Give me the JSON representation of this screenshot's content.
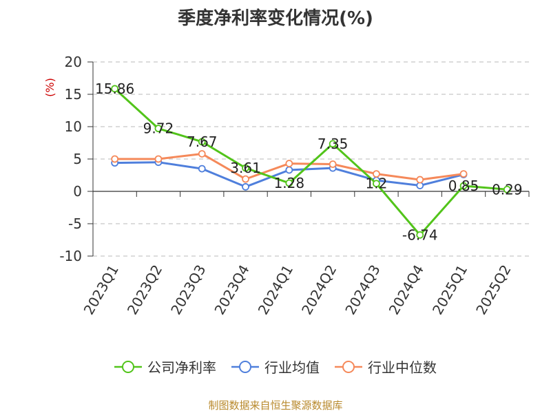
{
  "page": {
    "title": "季度净利率变化情况(%)",
    "source": "制图数据来自恒生聚源数据库"
  },
  "chart_data": {
    "type": "line",
    "title": "季度净利率变化情况(%)",
    "ylabel": "(%)",
    "xlabel": "",
    "categories": [
      "2023Q1",
      "2023Q2",
      "2023Q3",
      "2023Q4",
      "2024Q1",
      "2024Q2",
      "2024Q3",
      "2024Q4",
      "2025Q1",
      "2025Q2"
    ],
    "ylim": [
      -10,
      20
    ],
    "yticks": [
      20,
      15,
      10,
      5,
      0,
      -5,
      -10
    ],
    "grid": true,
    "legend_position": "bottom",
    "series": [
      {
        "name": "公司净利率",
        "color": "#52c41a",
        "values": [
          15.86,
          9.72,
          7.67,
          3.61,
          1.28,
          7.35,
          1.2,
          -6.74,
          0.85,
          0.29
        ],
        "labels": [
          "15.86",
          "9.72",
          "7.67",
          "3.61",
          "1.28",
          "7.35",
          "1.2",
          "-6.74",
          "0.85",
          "0.29"
        ]
      },
      {
        "name": "行业均值",
        "color": "#4f7fdc",
        "values": [
          4.4,
          4.5,
          3.5,
          0.7,
          3.3,
          3.6,
          1.7,
          0.9,
          2.6,
          null
        ]
      },
      {
        "name": "行业中位数",
        "color": "#f5895a",
        "values": [
          5.0,
          5.0,
          5.8,
          1.9,
          4.3,
          4.2,
          2.7,
          1.8,
          2.7,
          null
        ]
      }
    ]
  }
}
